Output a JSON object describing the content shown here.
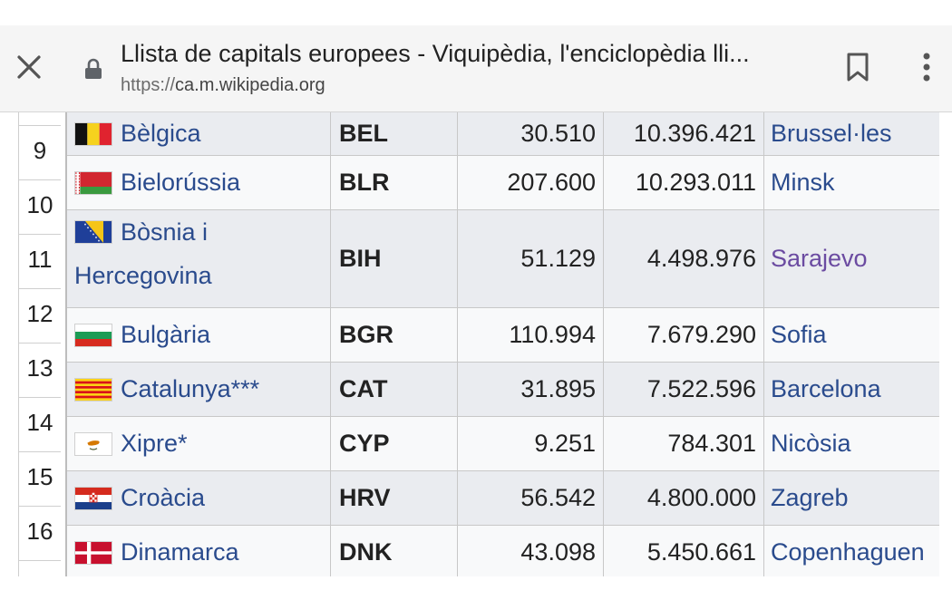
{
  "browser": {
    "title": "Llista de capitals europees - Viquipèdia, l'enciclopèdia lli...",
    "url_scheme": "https://",
    "url_host": "ca.m.wikipedia.org"
  },
  "icons": {
    "close": "close-icon",
    "lock": "lock-icon",
    "bookmark": "bookmark-icon",
    "menu": "more-vert-icon"
  },
  "row_numbers": [
    "9",
    "10",
    "11",
    "12",
    "13",
    "14",
    "15",
    "16"
  ],
  "rows": [
    {
      "country": "Bèlgica",
      "code": "BEL",
      "area": "30.510",
      "population": "10.396.421",
      "capital": "Brussel·les",
      "flag": "belgium"
    },
    {
      "country": "Bielorússia",
      "code": "BLR",
      "area": "207.600",
      "population": "10.293.011",
      "capital": "Minsk",
      "flag": "belarus"
    },
    {
      "country_line1": "Bòsnia i",
      "country_line2": "Hercegovina",
      "code": "BIH",
      "area": "51.129",
      "population": "4.498.976",
      "capital": "Sarajevo",
      "flag": "bosnia"
    },
    {
      "country": "Bulgària",
      "code": "BGR",
      "area": "110.994",
      "population": "7.679.290",
      "capital": "Sofia",
      "flag": "bulgaria"
    },
    {
      "country": "Catalunya***",
      "code": "CAT",
      "area": "31.895",
      "population": "7.522.596",
      "capital": "Barcelona",
      "flag": "catalonia"
    },
    {
      "country": "Xipre*",
      "code": "CYP",
      "area": "9.251",
      "population": "784.301",
      "capital": "Nicòsia",
      "flag": "cyprus"
    },
    {
      "country": "Croàcia",
      "code": "HRV",
      "area": "56.542",
      "population": "4.800.000",
      "capital": "Zagreb",
      "flag": "croatia"
    },
    {
      "country": "Dinamarca",
      "code": "DNK",
      "area": "43.098",
      "population": "5.450.661",
      "capital": "Copenhaguen",
      "flag": "denmark"
    }
  ],
  "colors": {
    "link": "#2a4b8d",
    "visited_link": "#6b4ba1",
    "row_shade": "#eaecf0"
  }
}
